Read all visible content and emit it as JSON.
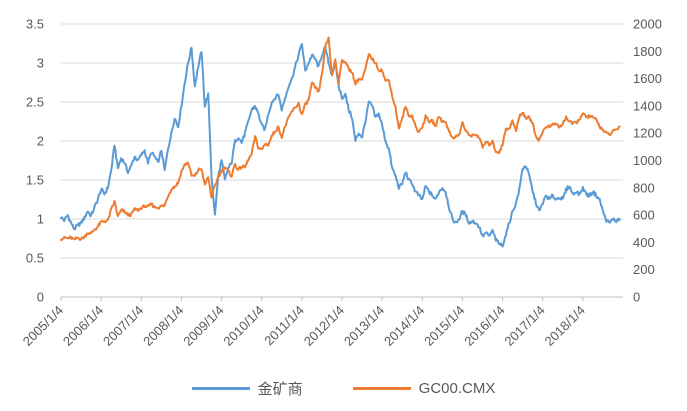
{
  "chart_data": {
    "type": "line",
    "title": "",
    "xlabel": "",
    "ylabel_left": "",
    "ylabel_right": "",
    "grid": true,
    "legend_position": "bottom",
    "x_axis": {
      "tick_labels": [
        "2005/1/4",
        "2006/1/4",
        "2007/1/4",
        "2008/1/4",
        "2009/1/4",
        "2010/1/4",
        "2011/1/4",
        "2012/1/4",
        "2013/1/4",
        "2014/1/4",
        "2015/1/4",
        "2016/1/4",
        "2017/1/4",
        "2018/1/4"
      ],
      "start_year": 2005,
      "end_year": 2019
    },
    "y_axis_left": {
      "min": 0,
      "max": 3.5,
      "step": 0.5,
      "tick_labels": [
        "0",
        "0.5",
        "1",
        "1.5",
        "2",
        "2.5",
        "3",
        "3.5"
      ]
    },
    "y_axis_right": {
      "min": 0,
      "max": 2000,
      "step": 200,
      "tick_labels": [
        "0",
        "200",
        "400",
        "600",
        "800",
        "1000",
        "1200",
        "1400",
        "1600",
        "1800",
        "2000"
      ]
    },
    "series": [
      {
        "name": "金矿商",
        "color": "#5B9BD5",
        "axis": "left",
        "x_start": 2005.0,
        "x_step_months": 1,
        "noise_amp": 0.05,
        "values": [
          1.02,
          0.98,
          1.05,
          0.95,
          0.87,
          0.92,
          0.95,
          1.02,
          1.1,
          1.04,
          1.15,
          1.25,
          1.38,
          1.32,
          1.4,
          1.62,
          1.95,
          1.65,
          1.78,
          1.72,
          1.6,
          1.68,
          1.8,
          1.75,
          1.82,
          1.88,
          1.72,
          1.85,
          1.8,
          1.72,
          1.88,
          1.62,
          1.9,
          2.1,
          2.3,
          2.18,
          2.45,
          2.75,
          3.0,
          3.2,
          2.7,
          2.95,
          3.15,
          2.45,
          2.6,
          1.55,
          1.05,
          1.55,
          1.75,
          1.5,
          1.65,
          1.72,
          2.0,
          2.05,
          1.98,
          2.1,
          2.25,
          2.4,
          2.45,
          2.35,
          2.2,
          2.15,
          2.35,
          2.5,
          2.55,
          2.6,
          2.4,
          2.55,
          2.7,
          2.8,
          2.95,
          3.1,
          3.25,
          2.9,
          3.0,
          3.1,
          3.05,
          2.95,
          3.1,
          3.2,
          3.0,
          2.85,
          3.0,
          2.7,
          2.55,
          2.6,
          2.4,
          2.3,
          2.0,
          2.1,
          2.05,
          2.25,
          2.5,
          2.45,
          2.3,
          2.35,
          2.2,
          2.0,
          1.9,
          1.65,
          1.55,
          1.4,
          1.45,
          1.6,
          1.5,
          1.45,
          1.35,
          1.3,
          1.25,
          1.42,
          1.35,
          1.3,
          1.25,
          1.35,
          1.4,
          1.35,
          1.15,
          1.0,
          0.95,
          1.0,
          1.1,
          1.05,
          0.95,
          0.97,
          0.95,
          0.9,
          0.78,
          0.82,
          0.78,
          0.85,
          0.73,
          0.68,
          0.66,
          0.8,
          0.95,
          1.1,
          1.2,
          1.38,
          1.65,
          1.68,
          1.55,
          1.35,
          1.2,
          1.1,
          1.2,
          1.3,
          1.25,
          1.3,
          1.25,
          1.28,
          1.25,
          1.38,
          1.42,
          1.32,
          1.35,
          1.32,
          1.4,
          1.32,
          1.3,
          1.35,
          1.3,
          1.25,
          1.1,
          0.98,
          0.95,
          1.0,
          0.97,
          1.0
        ]
      },
      {
        "name": "GC00.CMX",
        "color": "#ED7D31",
        "axis": "right",
        "x_start": 2005.0,
        "x_step_months": 1,
        "noise_amp": 24,
        "values": [
          425,
          435,
          430,
          435,
          420,
          435,
          425,
          440,
          470,
          465,
          495,
          515,
          550,
          555,
          560,
          640,
          700,
          590,
          635,
          625,
          600,
          605,
          645,
          635,
          650,
          665,
          660,
          680,
          660,
          655,
          665,
          670,
          740,
          790,
          810,
          835,
          920,
          970,
          985,
          890,
          885,
          930,
          940,
          820,
          880,
          730,
          815,
          880,
          920,
          950,
          920,
          885,
          975,
          930,
          955,
          950,
          1005,
          1045,
          1175,
          1095,
          1080,
          1120,
          1115,
          1180,
          1215,
          1245,
          1170,
          1250,
          1310,
          1360,
          1385,
          1420,
          1335,
          1410,
          1440,
          1565,
          1535,
          1500,
          1630,
          1830,
          1900,
          1620,
          1745,
          1565,
          1740,
          1720,
          1670,
          1650,
          1560,
          1600,
          1590,
          1670,
          1775,
          1745,
          1715,
          1665,
          1660,
          1580,
          1595,
          1470,
          1390,
          1230,
          1310,
          1395,
          1330,
          1325,
          1250,
          1205,
          1245,
          1325,
          1285,
          1290,
          1250,
          1325,
          1285,
          1285,
          1210,
          1170,
          1175,
          1185,
          1280,
          1215,
          1185,
          1185,
          1190,
          1170,
          1095,
          1135,
          1115,
          1140,
          1065,
          1060,
          1115,
          1235,
          1235,
          1290,
          1215,
          1320,
          1355,
          1310,
          1315,
          1275,
          1175,
          1150,
          1210,
          1250,
          1245,
          1265,
          1270,
          1240,
          1270,
          1320,
          1285,
          1270,
          1275,
          1305,
          1340,
          1320,
          1325,
          1315,
          1300,
          1250,
          1225,
          1200,
          1190,
          1215,
          1225,
          1250
        ]
      }
    ],
    "style": {
      "gridline_color": "#D9D9D9",
      "axis_line_color": "#BFBFBF",
      "tick_label_color": "#595959",
      "background": "#FFFFFF"
    }
  }
}
